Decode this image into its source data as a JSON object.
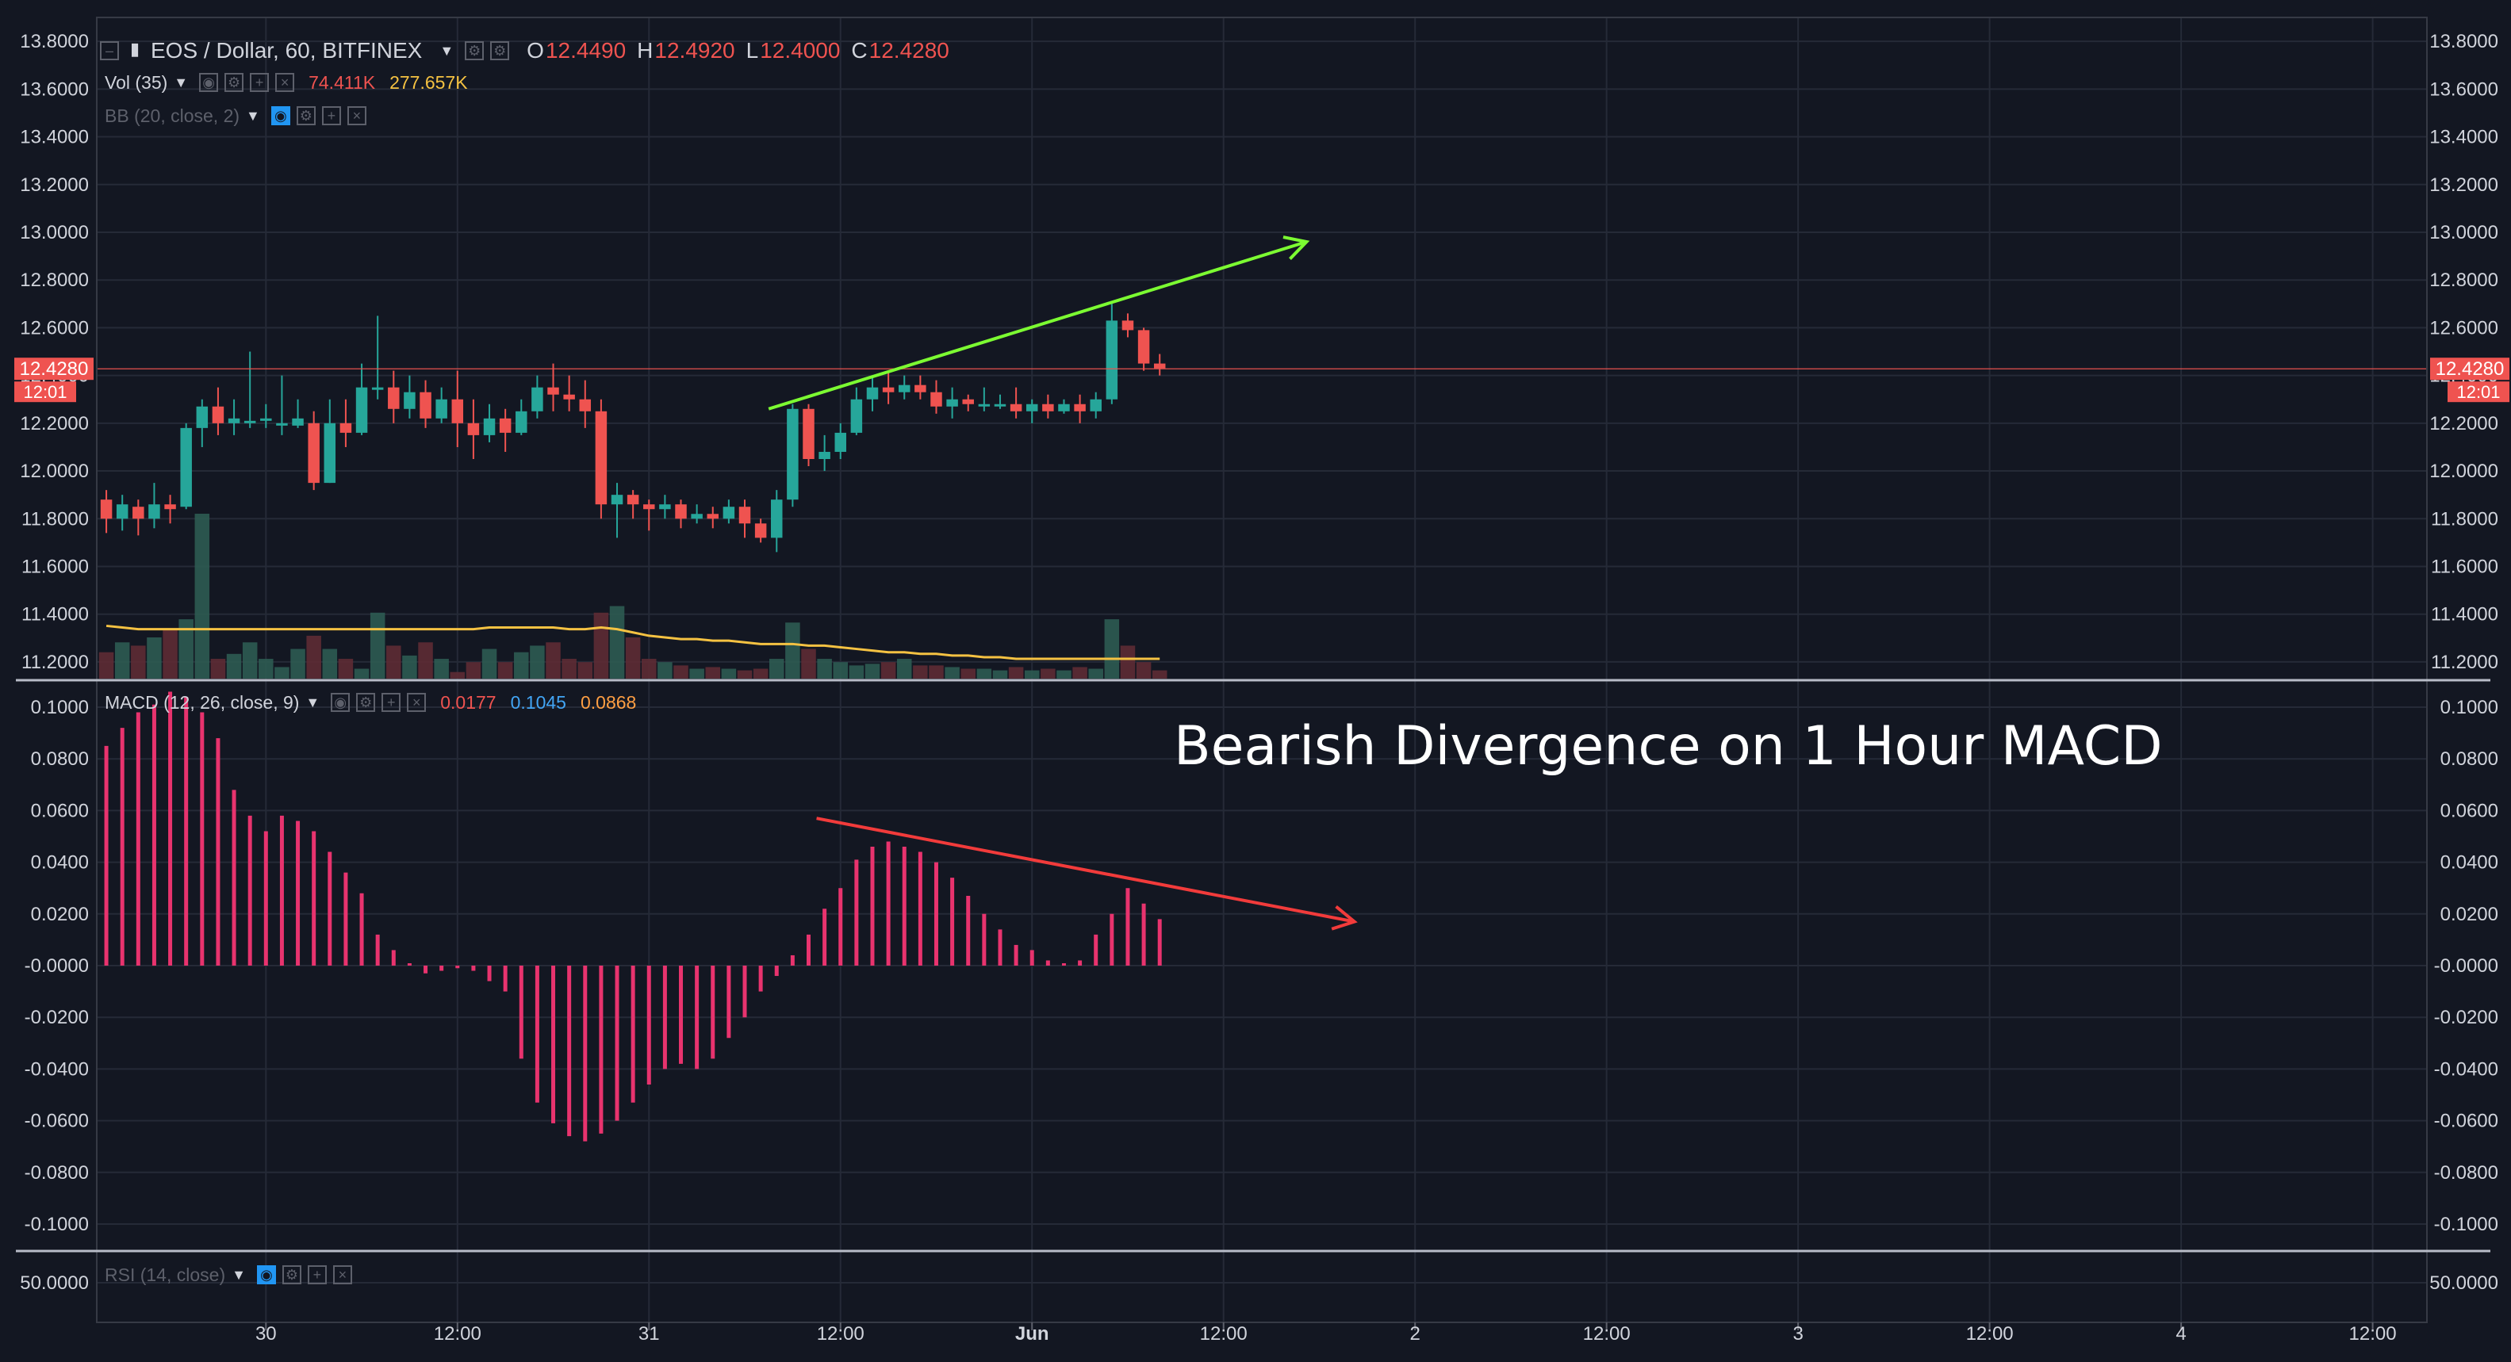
{
  "header": {
    "symbol": "EOS / Dollar, 60, BITFINEX",
    "ohlc": {
      "o_label": "O",
      "o": "12.4490",
      "h_label": "H",
      "h": "12.4920",
      "l_label": "L",
      "l": "12.4000",
      "c_label": "C",
      "c": "12.4280"
    }
  },
  "volume_legend": {
    "label": "Vol (35)",
    "value": "74.411K",
    "ma": "277.657K"
  },
  "bb_legend": {
    "label": "BB (20, close, 2)"
  },
  "macd_legend": {
    "label": "MACD (12, 26, close, 9)",
    "macd": "0.0177",
    "signal": "0.1045",
    "hist": "0.0868"
  },
  "rsi_legend": {
    "label": "RSI (14, close)"
  },
  "annotation": "Bearish Divergence on 1 Hour MACD",
  "price_badge": {
    "value": "12.4280",
    "countdown": "12:01"
  },
  "colors": {
    "up": "#26a69a",
    "down": "#ef5350",
    "macd_hist": "#e8336e",
    "vol_ma": "#f5c242",
    "trend_up": "#7cfc32",
    "trend_down": "#f23b3b",
    "background": "#131722"
  },
  "chart_data": [
    {
      "type": "candlestick",
      "ylim": [
        11.13,
        13.9
      ],
      "y_ticks": [
        "13.8000",
        "13.6000",
        "13.4000",
        "13.2000",
        "13.0000",
        "12.8000",
        "12.6000",
        "12.4000",
        "12.2000",
        "12.0000",
        "11.8000",
        "11.6000",
        "11.4000",
        "11.2000"
      ],
      "x_ticks": [
        "30",
        "12:00",
        "31",
        "12:00",
        "Jun",
        "12:00",
        "2",
        "12:00",
        "3",
        "12:00",
        "4",
        "12:00"
      ],
      "x_tick_bars": [
        10,
        22,
        34,
        46,
        58,
        70,
        82,
        94,
        106,
        118,
        130,
        142
      ],
      "bar_count_span": [
        -0.6,
        145.4
      ],
      "candles": [
        [
          11.88,
          11.8,
          11.92,
          11.74
        ],
        [
          11.8,
          11.86,
          11.9,
          11.75
        ],
        [
          11.85,
          11.8,
          11.88,
          11.73
        ],
        [
          11.8,
          11.86,
          11.95,
          11.76
        ],
        [
          11.86,
          11.84,
          11.9,
          11.78
        ],
        [
          11.85,
          12.18,
          12.2,
          11.84
        ],
        [
          12.18,
          12.27,
          12.3,
          12.1
        ],
        [
          12.27,
          12.2,
          12.35,
          12.15
        ],
        [
          12.2,
          12.22,
          12.3,
          12.15
        ],
        [
          12.21,
          12.21,
          12.5,
          12.18
        ],
        [
          12.21,
          12.22,
          12.28,
          12.18
        ],
        [
          12.2,
          12.2,
          12.4,
          12.15
        ],
        [
          12.19,
          12.22,
          12.3,
          12.18
        ],
        [
          12.2,
          11.95,
          12.25,
          11.92
        ],
        [
          11.95,
          12.2,
          12.3,
          11.95
        ],
        [
          12.2,
          12.16,
          12.3,
          12.1
        ],
        [
          12.16,
          12.35,
          12.45,
          12.15
        ],
        [
          12.35,
          12.35,
          12.65,
          12.3
        ],
        [
          12.35,
          12.26,
          12.42,
          12.2
        ],
        [
          12.26,
          12.33,
          12.4,
          12.22
        ],
        [
          12.33,
          12.22,
          12.38,
          12.18
        ],
        [
          12.22,
          12.3,
          12.35,
          12.2
        ],
        [
          12.3,
          12.2,
          12.42,
          12.1
        ],
        [
          12.2,
          12.15,
          12.3,
          12.05
        ],
        [
          12.15,
          12.22,
          12.28,
          12.12
        ],
        [
          12.22,
          12.16,
          12.26,
          12.08
        ],
        [
          12.16,
          12.25,
          12.3,
          12.15
        ],
        [
          12.25,
          12.35,
          12.4,
          12.22
        ],
        [
          12.35,
          12.32,
          12.45,
          12.25
        ],
        [
          12.32,
          12.3,
          12.4,
          12.25
        ],
        [
          12.3,
          12.25,
          12.38,
          12.18
        ],
        [
          12.25,
          11.86,
          12.3,
          11.8
        ],
        [
          11.86,
          11.9,
          11.95,
          11.72
        ],
        [
          11.9,
          11.86,
          11.92,
          11.8
        ],
        [
          11.86,
          11.84,
          11.88,
          11.75
        ],
        [
          11.84,
          11.86,
          11.9,
          11.8
        ],
        [
          11.86,
          11.8,
          11.88,
          11.76
        ],
        [
          11.8,
          11.82,
          11.86,
          11.78
        ],
        [
          11.82,
          11.8,
          11.85,
          11.76
        ],
        [
          11.8,
          11.85,
          11.88,
          11.78
        ],
        [
          11.85,
          11.78,
          11.88,
          11.72
        ],
        [
          11.78,
          11.72,
          11.8,
          11.7
        ],
        [
          11.72,
          11.88,
          11.92,
          11.66
        ],
        [
          11.88,
          12.26,
          12.28,
          11.85
        ],
        [
          12.26,
          12.05,
          12.28,
          12.02
        ],
        [
          12.05,
          12.08,
          12.15,
          12.0
        ],
        [
          12.08,
          12.16,
          12.2,
          12.05
        ],
        [
          12.16,
          12.3,
          12.35,
          12.15
        ],
        [
          12.3,
          12.35,
          12.4,
          12.25
        ],
        [
          12.35,
          12.33,
          12.42,
          12.28
        ],
        [
          12.33,
          12.36,
          12.4,
          12.3
        ],
        [
          12.36,
          12.33,
          12.4,
          12.3
        ],
        [
          12.33,
          12.27,
          12.38,
          12.24
        ],
        [
          12.27,
          12.3,
          12.35,
          12.22
        ],
        [
          12.3,
          12.28,
          12.32,
          12.25
        ],
        [
          12.28,
          12.28,
          12.35,
          12.25
        ],
        [
          12.28,
          12.28,
          12.32,
          12.26
        ],
        [
          12.28,
          12.25,
          12.35,
          12.22
        ],
        [
          12.25,
          12.28,
          12.3,
          12.2
        ],
        [
          12.28,
          12.25,
          12.32,
          12.22
        ],
        [
          12.25,
          12.28,
          12.3,
          12.24
        ],
        [
          12.28,
          12.25,
          12.32,
          12.2
        ],
        [
          12.25,
          12.3,
          12.33,
          12.22
        ],
        [
          12.3,
          12.63,
          12.7,
          12.28
        ],
        [
          12.63,
          12.59,
          12.66,
          12.56
        ],
        [
          12.59,
          12.45,
          12.6,
          12.42
        ],
        [
          12.45,
          12.43,
          12.49,
          12.4
        ]
      ]
    },
    {
      "type": "bar",
      "name": "Vol (35)",
      "ylim": [
        0,
        1.0
      ],
      "values": [
        0.16,
        0.22,
        0.2,
        0.25,
        0.3,
        0.36,
        1.0,
        0.12,
        0.15,
        0.22,
        0.12,
        0.07,
        0.18,
        0.26,
        0.18,
        0.12,
        0.06,
        0.4,
        0.2,
        0.14,
        0.22,
        0.12,
        0.04,
        0.1,
        0.18,
        0.1,
        0.16,
        0.2,
        0.22,
        0.12,
        0.1,
        0.4,
        0.44,
        0.25,
        0.12,
        0.1,
        0.08,
        0.06,
        0.07,
        0.06,
        0.05,
        0.06,
        0.12,
        0.34,
        0.18,
        0.12,
        0.1,
        0.08,
        0.09,
        0.1,
        0.12,
        0.08,
        0.08,
        0.07,
        0.06,
        0.06,
        0.05,
        0.07,
        0.05,
        0.06,
        0.05,
        0.07,
        0.06,
        0.36,
        0.2,
        0.1,
        0.05
      ],
      "ma": [
        0.32,
        0.31,
        0.3,
        0.3,
        0.3,
        0.3,
        0.3,
        0.3,
        0.3,
        0.3,
        0.3,
        0.3,
        0.3,
        0.3,
        0.3,
        0.3,
        0.3,
        0.3,
        0.3,
        0.3,
        0.3,
        0.3,
        0.3,
        0.3,
        0.31,
        0.31,
        0.31,
        0.31,
        0.31,
        0.3,
        0.3,
        0.31,
        0.3,
        0.28,
        0.26,
        0.25,
        0.24,
        0.24,
        0.23,
        0.23,
        0.22,
        0.21,
        0.21,
        0.21,
        0.2,
        0.2,
        0.19,
        0.18,
        0.17,
        0.16,
        0.16,
        0.15,
        0.15,
        0.14,
        0.14,
        0.13,
        0.13,
        0.12,
        0.12,
        0.12,
        0.12,
        0.12,
        0.12,
        0.12,
        0.12,
        0.12,
        0.12
      ]
    },
    {
      "type": "bar",
      "name": "MACD (12, 26, close, 9)",
      "ylim": [
        -0.1,
        0.1
      ],
      "y_ticks": [
        "0.1000",
        "0.0800",
        "0.0600",
        "0.0400",
        "0.0200",
        "-0.0000",
        "-0.0200",
        "-0.0400",
        "-0.0600",
        "-0.0800",
        "-0.1000"
      ],
      "values": [
        0.085,
        0.092,
        0.098,
        0.101,
        0.106,
        0.104,
        0.098,
        0.088,
        0.068,
        0.058,
        0.052,
        0.058,
        0.056,
        0.052,
        0.044,
        0.036,
        0.028,
        0.012,
        0.006,
        0.0,
        -0.003,
        -0.002,
        -0.001,
        -0.002,
        -0.006,
        -0.01,
        -0.036,
        -0.053,
        -0.061,
        -0.066,
        -0.068,
        -0.065,
        -0.06,
        -0.053,
        -0.046,
        -0.04,
        -0.038,
        -0.04,
        -0.036,
        -0.028,
        -0.02,
        -0.01,
        -0.004,
        0.004,
        0.012,
        0.022,
        0.03,
        0.041,
        0.046,
        0.048,
        0.046,
        0.044,
        0.04,
        0.034,
        0.027,
        0.02,
        0.014,
        0.008,
        0.006,
        0.002,
        0.0,
        0.002,
        0.012,
        0.02,
        0.03,
        0.024,
        0.018
      ]
    },
    {
      "type": "line",
      "name": "RSI (14, close)",
      "y_ticks": [
        "50.0000"
      ]
    }
  ]
}
